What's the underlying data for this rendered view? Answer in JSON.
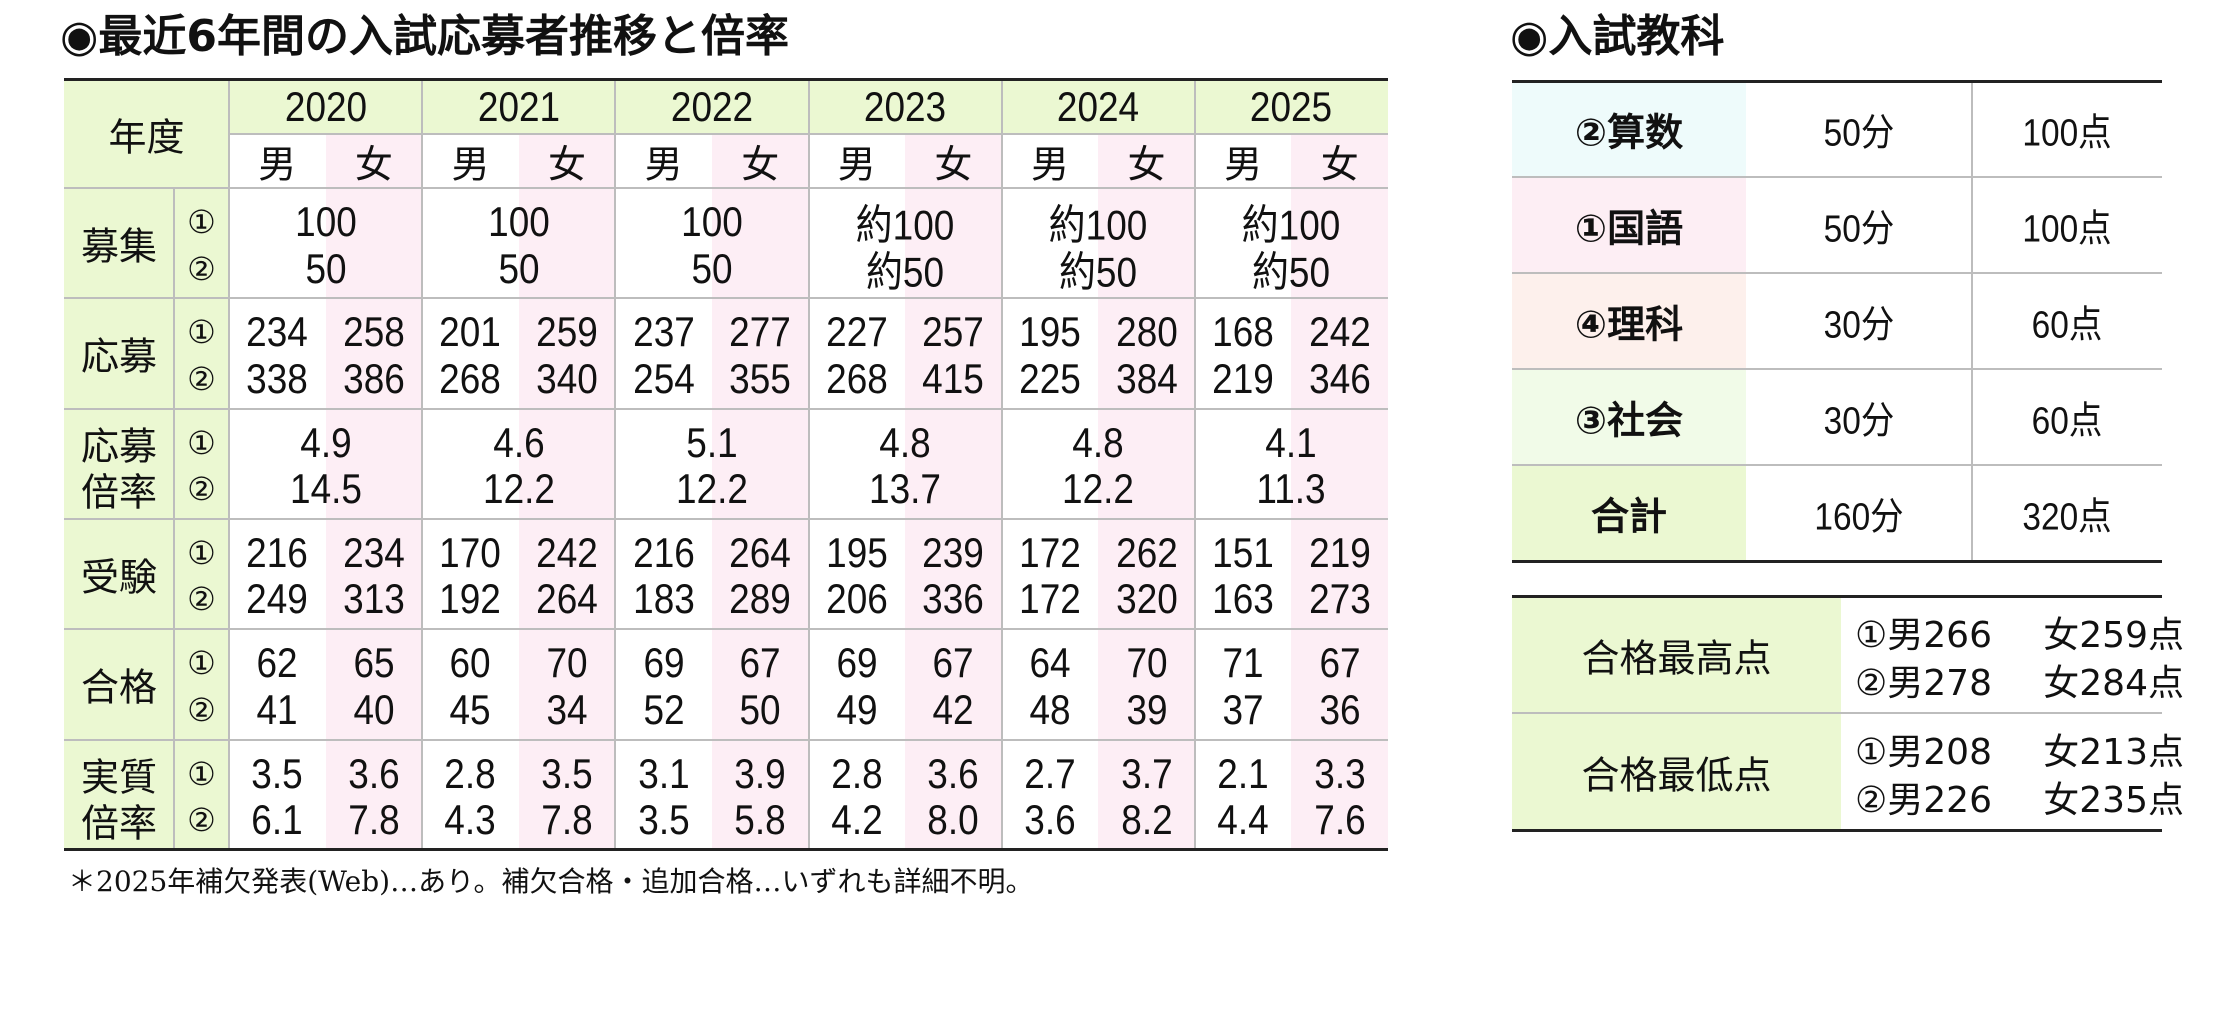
{
  "left": {
    "title": "◉最近6年間の入試応募者推移と倍率",
    "year_header": "年度",
    "years": [
      "2020",
      "2021",
      "2022",
      "2023",
      "2024",
      "2025"
    ],
    "genders": [
      "男",
      "女"
    ],
    "markers": [
      "①",
      "②"
    ],
    "rows": [
      {
        "label": [
          "募集"
        ],
        "values": [
          [
            "100",
            "50"
          ],
          [
            "100",
            "50"
          ],
          [
            "100",
            "50"
          ],
          [
            "約100",
            "約50"
          ],
          [
            "約100",
            "約50"
          ],
          [
            "約100",
            "約50"
          ]
        ]
      },
      {
        "label": [
          "応募"
        ],
        "values": [
          [
            [
              "234",
              "338"
            ],
            [
              "258",
              "386"
            ]
          ],
          [
            [
              "201",
              "268"
            ],
            [
              "259",
              "340"
            ]
          ],
          [
            [
              "237",
              "254"
            ],
            [
              "277",
              "355"
            ]
          ],
          [
            [
              "227",
              "268"
            ],
            [
              "257",
              "415"
            ]
          ],
          [
            [
              "195",
              "225"
            ],
            [
              "280",
              "384"
            ]
          ],
          [
            [
              "168",
              "219"
            ],
            [
              "242",
              "346"
            ]
          ]
        ]
      },
      {
        "label": [
          "応募",
          "倍率"
        ],
        "values": [
          [
            "4.9",
            "14.5"
          ],
          [
            "4.6",
            "12.2"
          ],
          [
            "5.1",
            "12.2"
          ],
          [
            "4.8",
            "13.7"
          ],
          [
            "4.8",
            "12.2"
          ],
          [
            "4.1",
            "11.3"
          ]
        ]
      },
      {
        "label": [
          "受験"
        ],
        "values": [
          [
            [
              "216",
              "249"
            ],
            [
              "234",
              "313"
            ]
          ],
          [
            [
              "170",
              "192"
            ],
            [
              "242",
              "264"
            ]
          ],
          [
            [
              "216",
              "183"
            ],
            [
              "264",
              "289"
            ]
          ],
          [
            [
              "195",
              "206"
            ],
            [
              "239",
              "336"
            ]
          ],
          [
            [
              "172",
              "172"
            ],
            [
              "262",
              "320"
            ]
          ],
          [
            [
              "151",
              "163"
            ],
            [
              "219",
              "273"
            ]
          ]
        ]
      },
      {
        "label": [
          "合格"
        ],
        "values": [
          [
            [
              "62",
              "41"
            ],
            [
              "65",
              "40"
            ]
          ],
          [
            [
              "60",
              "45"
            ],
            [
              "70",
              "34"
            ]
          ],
          [
            [
              "69",
              "52"
            ],
            [
              "67",
              "50"
            ]
          ],
          [
            [
              "69",
              "49"
            ],
            [
              "67",
              "42"
            ]
          ],
          [
            [
              "64",
              "48"
            ],
            [
              "70",
              "39"
            ]
          ],
          [
            [
              "71",
              "37"
            ],
            [
              "67",
              "36"
            ]
          ]
        ]
      },
      {
        "label": [
          "実質",
          "倍率"
        ],
        "values": [
          [
            [
              "3.5",
              "6.1"
            ],
            [
              "3.6",
              "7.8"
            ]
          ],
          [
            [
              "2.8",
              "4.3"
            ],
            [
              "3.5",
              "7.8"
            ]
          ],
          [
            [
              "3.1",
              "3.5"
            ],
            [
              "3.9",
              "5.8"
            ]
          ],
          [
            [
              "2.8",
              "4.2"
            ],
            [
              "3.6",
              "8.0"
            ]
          ],
          [
            [
              "2.7",
              "3.6"
            ],
            [
              "3.7",
              "8.2"
            ]
          ],
          [
            [
              "2.1",
              "4.4"
            ],
            [
              "3.3",
              "7.6"
            ]
          ]
        ]
      }
    ],
    "note": "＊2025年補欠発表(Web)…あり。補欠合格・追加合格…いずれも詳細不明。"
  },
  "right": {
    "title": "◉入試教科",
    "subjects": [
      [
        "②算数",
        "50分",
        "100点"
      ],
      [
        "①国語",
        "50分",
        "100点"
      ],
      [
        "④理科",
        "30分",
        "60点"
      ],
      [
        "③社会",
        "30分",
        "60点"
      ],
      [
        "合計",
        "160分",
        "320点"
      ]
    ],
    "scores": [
      {
        "label": "合格最高点",
        "lines": [
          [
            "①男266",
            "女259点"
          ],
          [
            "②男278",
            "女284点"
          ]
        ]
      },
      {
        "label": "合格最低点",
        "lines": [
          [
            "①男208",
            "女213点"
          ],
          [
            "②男226",
            "女235点"
          ]
        ]
      }
    ]
  }
}
